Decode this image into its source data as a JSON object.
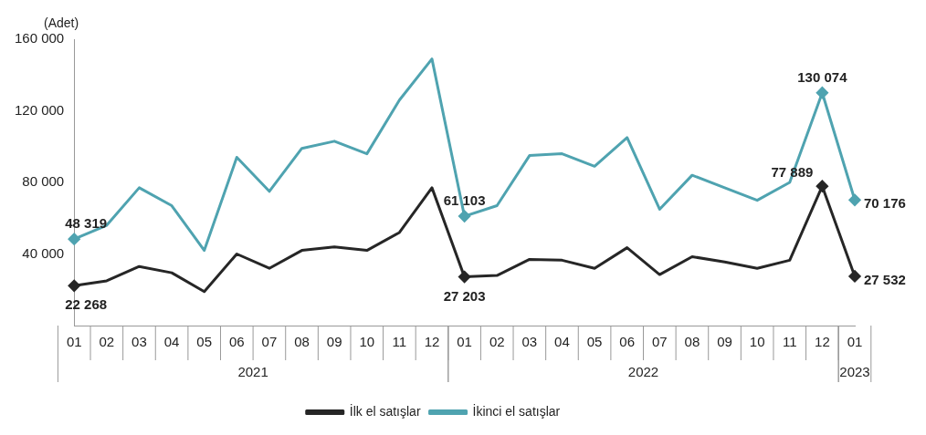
{
  "chart_data": {
    "type": "line",
    "ylabel": "(Adet)",
    "categories": [
      "01",
      "02",
      "03",
      "04",
      "05",
      "06",
      "07",
      "08",
      "09",
      "10",
      "11",
      "12",
      "01",
      "02",
      "03",
      "04",
      "05",
      "06",
      "07",
      "08",
      "09",
      "10",
      "11",
      "12",
      "01"
    ],
    "annotations": [
      "2021",
      "2022",
      "2023"
    ],
    "series": [
      {
        "name": "İlk el satışlar",
        "color": "#262626",
        "values": [
          22268,
          25000,
          33000,
          29500,
          19000,
          40000,
          32000,
          42000,
          44000,
          42000,
          52000,
          77000,
          27203,
          28000,
          37000,
          36500,
          32000,
          43500,
          28500,
          38500,
          35500,
          32000,
          36500,
          77889,
          27532
        ],
        "value_labels": [
          "22 268",
          null,
          null,
          null,
          null,
          null,
          null,
          null,
          null,
          null,
          null,
          null,
          "27 203",
          null,
          null,
          null,
          null,
          null,
          null,
          null,
          null,
          null,
          null,
          "77 889",
          "27 532"
        ]
      },
      {
        "name": "İkinci el satışlar",
        "color": "#4fa3b0",
        "values": [
          48319,
          56000,
          77000,
          67000,
          42000,
          94000,
          75000,
          99000,
          103000,
          96000,
          126000,
          149000,
          61103,
          67000,
          95000,
          96000,
          89000,
          105000,
          65000,
          84000,
          77000,
          70000,
          80000,
          130074,
          70176
        ],
        "value_labels": [
          "48 319",
          null,
          null,
          null,
          null,
          null,
          null,
          null,
          null,
          null,
          null,
          null,
          "61 103",
          null,
          null,
          null,
          null,
          null,
          null,
          null,
          null,
          null,
          null,
          "130 074",
          "70 176"
        ]
      }
    ],
    "ylim": [
      0,
      160000
    ],
    "yticks": [
      {
        "value": 0,
        "label": null
      },
      {
        "value": 40000,
        "label": "40 000"
      },
      {
        "value": 80000,
        "label": "80 000"
      },
      {
        "value": 120000,
        "label": "120 000"
      },
      {
        "value": 160000,
        "label": "160 000"
      }
    ],
    "grid": false,
    "legend": "bottom",
    "line_style": "solid"
  }
}
